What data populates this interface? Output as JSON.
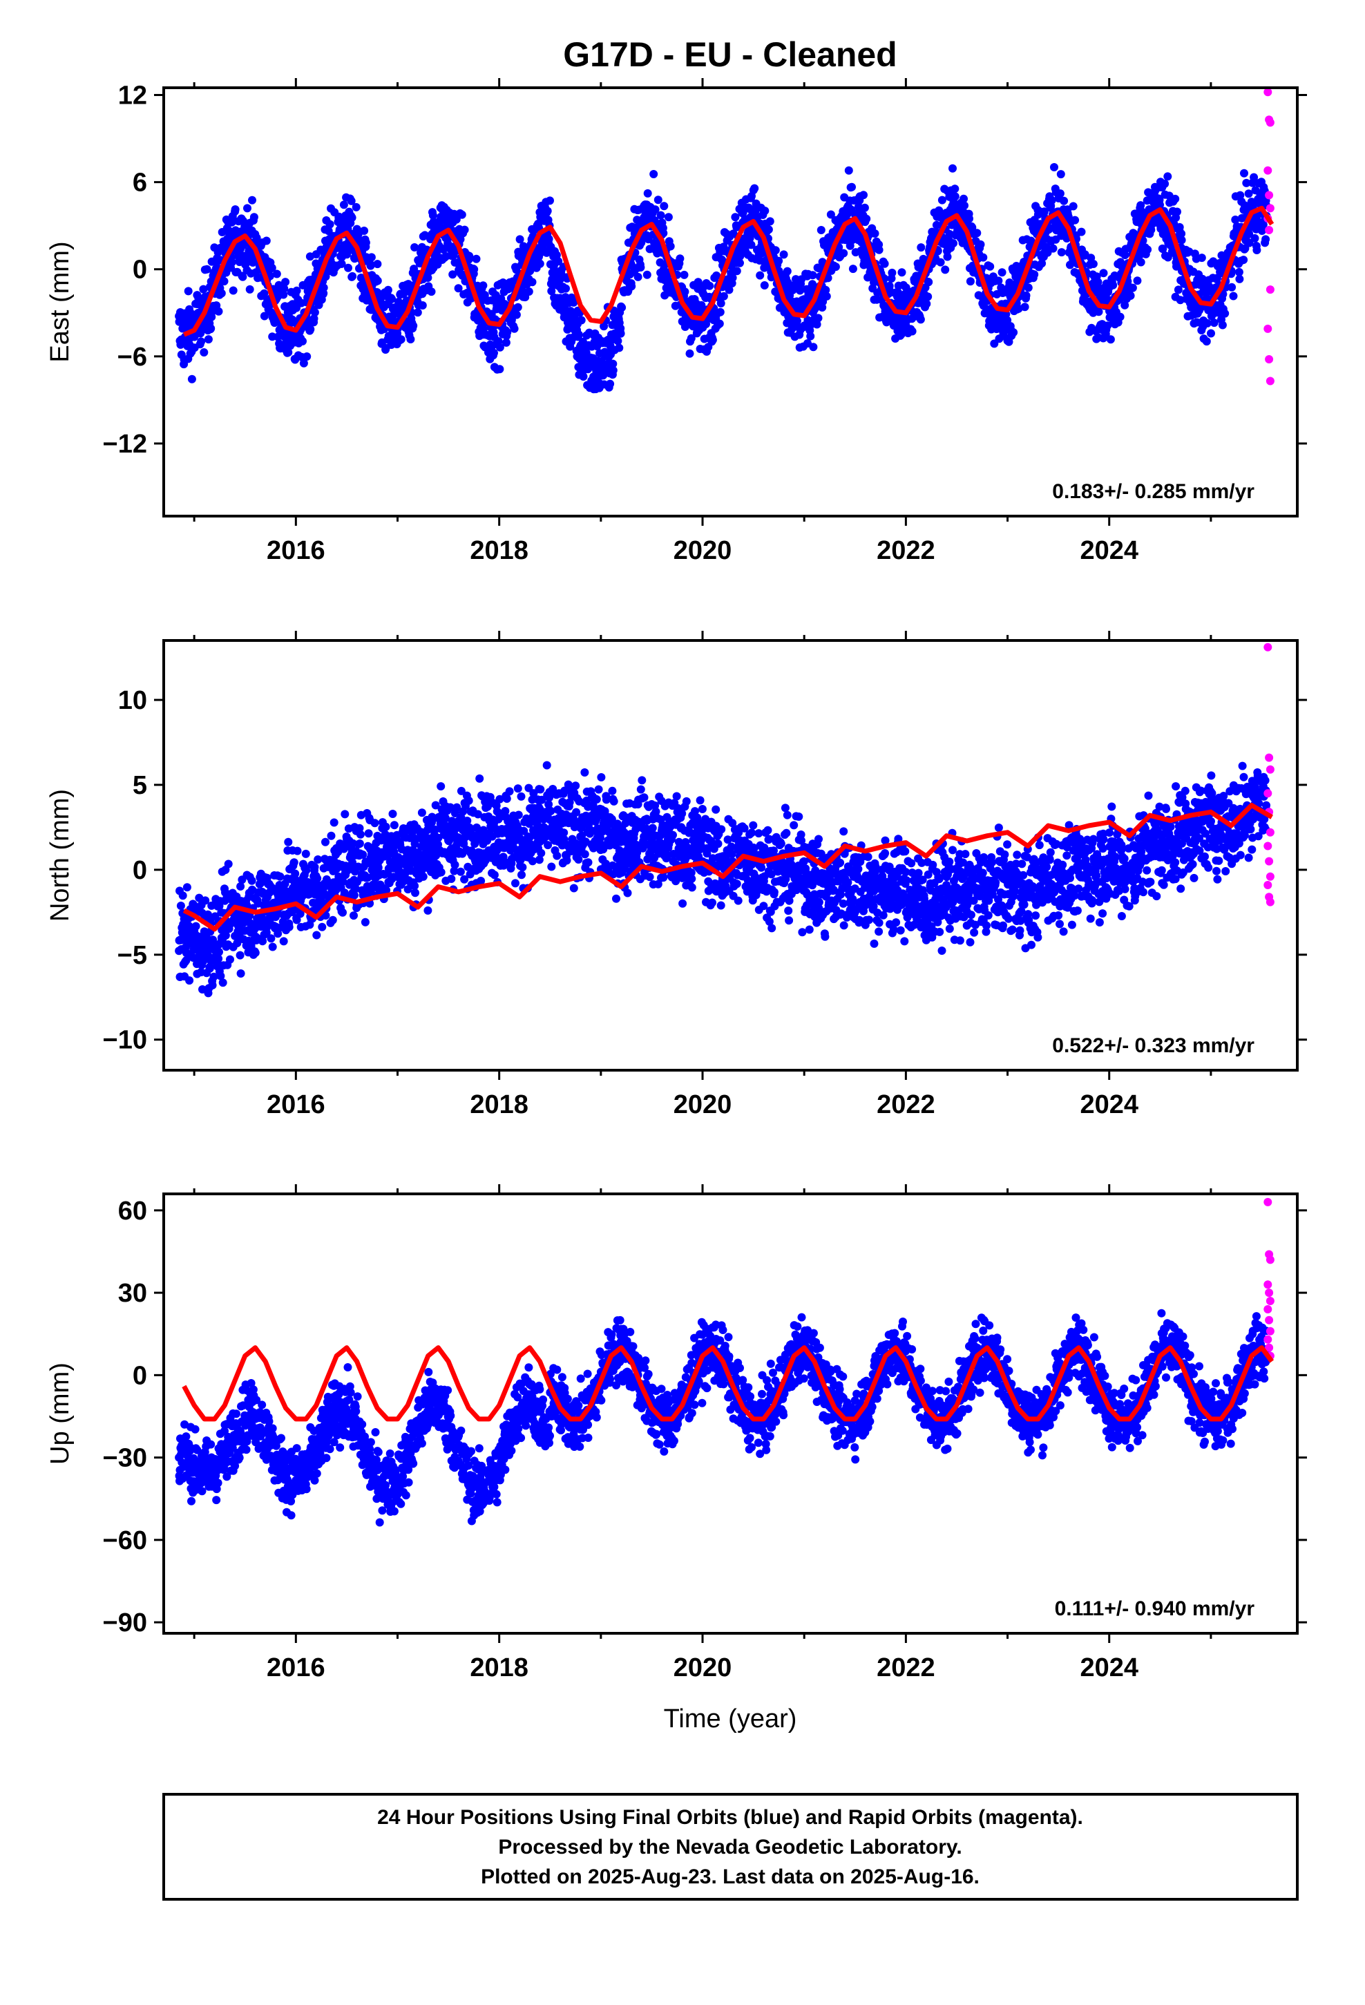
{
  "figure_title": "G17D  - EU - Cleaned",
  "xlabel": "Time (year)",
  "footer": [
    "24 Hour Positions Using Final Orbits (blue) and Rapid Orbits (magenta).",
    "Processed by the Nevada Geodetic Laboratory.",
    "Plotted on 2025-Aug-23. Last data on 2025-Aug-16."
  ],
  "colors": {
    "final": "#0000ff",
    "rapid": "#ff00ff",
    "model": "#ff0000",
    "frame": "#000000"
  },
  "chart_data": [
    {
      "type": "scatter",
      "name": "East",
      "ylabel": "East (mm)",
      "xlim": [
        2014.7,
        2025.85
      ],
      "ylim": [
        -17,
        12.5
      ],
      "xticks": [
        2016,
        2018,
        2020,
        2022,
        2024
      ],
      "yticks": [
        12,
        6,
        0,
        -6,
        -12
      ],
      "ytick_labels": [
        "12",
        "6",
        "0",
        "−6",
        "−12"
      ],
      "rate_label": "0.183+/- 0.285 mm/yr",
      "final_orbits_start": 2014.85,
      "final_orbits_end": 2025.55,
      "rapid_orbits_end": 2025.62,
      "model_curve": {
        "t": [
          2014.9,
          2015.0,
          2015.1,
          2015.2,
          2015.3,
          2015.4,
          2015.5,
          2015.6,
          2015.7,
          2015.8,
          2015.9,
          2016.0,
          2016.1,
          2016.2,
          2016.3,
          2016.4,
          2016.5,
          2016.6,
          2016.7,
          2016.8,
          2016.9,
          2017.0,
          2017.1,
          2017.2,
          2017.3,
          2017.4,
          2017.5,
          2017.6,
          2017.7,
          2017.8,
          2017.9,
          2018.0,
          2018.1,
          2018.2,
          2018.3,
          2018.4,
          2018.5,
          2018.6,
          2018.7,
          2018.8,
          2018.9,
          2019.0,
          2019.1,
          2019.2,
          2019.3,
          2019.4,
          2019.5,
          2019.6,
          2019.7,
          2019.8,
          2019.9,
          2020.0,
          2020.1,
          2020.2,
          2020.3,
          2020.4,
          2020.5,
          2020.6,
          2020.7,
          2020.8,
          2020.9,
          2021.0,
          2021.1,
          2021.2,
          2021.3,
          2021.4,
          2021.5,
          2021.6,
          2021.7,
          2021.8,
          2021.9,
          2022.0,
          2022.1,
          2022.2,
          2022.3,
          2022.4,
          2022.5,
          2022.6,
          2022.7,
          2022.8,
          2022.9,
          2023.0,
          2023.1,
          2023.2,
          2023.3,
          2023.4,
          2023.5,
          2023.6,
          2023.7,
          2023.8,
          2023.9,
          2024.0,
          2024.1,
          2024.2,
          2024.3,
          2024.4,
          2024.5,
          2024.6,
          2024.7,
          2024.8,
          2024.9,
          2025.0,
          2025.1,
          2025.2,
          2025.3,
          2025.4,
          2025.5,
          2025.6
        ],
        "y": [
          -4.5,
          -4.2,
          -3.0,
          -1.2,
          0.6,
          1.9,
          2.3,
          1.4,
          -0.5,
          -2.6,
          -4.0,
          -4.2,
          -3.1,
          -1.2,
          0.7,
          2.1,
          2.5,
          1.5,
          -0.6,
          -2.7,
          -3.9,
          -4.0,
          -2.9,
          -1.0,
          0.9,
          2.3,
          2.7,
          1.6,
          -0.5,
          -2.6,
          -3.7,
          -3.8,
          -2.7,
          -0.8,
          1.1,
          2.5,
          2.9,
          1.8,
          -0.4,
          -2.5,
          -3.5,
          -3.6,
          -2.5,
          -0.6,
          1.3,
          2.7,
          3.1,
          2.0,
          -0.2,
          -2.3,
          -3.3,
          -3.4,
          -2.3,
          -0.4,
          1.5,
          2.9,
          3.3,
          2.2,
          0.0,
          -2.1,
          -3.1,
          -3.2,
          -2.1,
          -0.2,
          1.7,
          3.1,
          3.5,
          2.4,
          0.2,
          -1.9,
          -2.9,
          -3.0,
          -1.9,
          0.0,
          1.9,
          3.3,
          3.7,
          2.6,
          0.4,
          -1.7,
          -2.7,
          -2.8,
          -1.7,
          0.2,
          2.1,
          3.5,
          3.9,
          2.8,
          0.6,
          -1.5,
          -2.5,
          -2.6,
          -1.5,
          0.4,
          2.3,
          3.7,
          4.1,
          3.0,
          0.8,
          -1.3,
          -2.3,
          -2.4,
          -1.3,
          0.6,
          2.5,
          3.9,
          4.2,
          3.1
        ]
      },
      "rapid_points_y": [
        12.2,
        10.3,
        10.1,
        6.8,
        5.1,
        4.2,
        3.5,
        2.7,
        -1.4,
        -4.1,
        -6.2,
        -7.7
      ]
    },
    {
      "type": "scatter",
      "name": "North",
      "ylabel": "North (mm)",
      "xlim": [
        2014.7,
        2025.85
      ],
      "ylim": [
        -11.8,
        13.5
      ],
      "xticks": [
        2016,
        2018,
        2020,
        2022,
        2024
      ],
      "yticks": [
        10,
        5,
        0,
        -5,
        -10
      ],
      "ytick_labels": [
        "10",
        "5",
        "0",
        "−5",
        "−10"
      ],
      "rate_label": "0.522+/- 0.323 mm/yr",
      "final_orbits_start": 2014.85,
      "final_orbits_end": 2025.55,
      "rapid_orbits_end": 2025.62,
      "model_curve": {
        "t": [
          2014.9,
          2015.0,
          2015.2,
          2015.4,
          2015.6,
          2015.8,
          2016.0,
          2016.2,
          2016.4,
          2016.6,
          2016.8,
          2017.0,
          2017.2,
          2017.4,
          2017.6,
          2017.8,
          2018.0,
          2018.2,
          2018.4,
          2018.6,
          2018.8,
          2019.0,
          2019.2,
          2019.4,
          2019.6,
          2019.8,
          2020.0,
          2020.2,
          2020.4,
          2020.6,
          2020.8,
          2021.0,
          2021.2,
          2021.4,
          2021.6,
          2021.8,
          2022.0,
          2022.2,
          2022.4,
          2022.6,
          2022.8,
          2023.0,
          2023.2,
          2023.4,
          2023.6,
          2023.8,
          2024.0,
          2024.2,
          2024.4,
          2024.6,
          2024.8,
          2025.0,
          2025.2,
          2025.4,
          2025.6
        ],
        "y": [
          -2.4,
          -2.7,
          -3.5,
          -2.2,
          -2.5,
          -2.3,
          -2.0,
          -2.8,
          -1.6,
          -1.9,
          -1.6,
          -1.4,
          -2.2,
          -1.0,
          -1.3,
          -1.0,
          -0.8,
          -1.6,
          -0.4,
          -0.7,
          -0.4,
          -0.2,
          -1.0,
          0.2,
          -0.1,
          0.2,
          0.4,
          -0.4,
          0.8,
          0.5,
          0.8,
          1.0,
          0.2,
          1.4,
          1.1,
          1.4,
          1.6,
          0.8,
          2.0,
          1.7,
          2.0,
          2.2,
          1.4,
          2.6,
          2.3,
          2.6,
          2.8,
          2.0,
          3.2,
          2.9,
          3.2,
          3.4,
          2.6,
          3.8,
          3.1
        ]
      },
      "rapid_points_y": [
        13.1,
        6.6,
        5.9,
        4.5,
        3.4,
        2.2,
        1.4,
        0.5,
        -0.4,
        -0.9,
        -1.6,
        -1.9
      ]
    },
    {
      "type": "scatter",
      "name": "Up",
      "ylabel": "Up (mm)",
      "xlim": [
        2014.7,
        2025.85
      ],
      "ylim": [
        -94,
        66
      ],
      "xticks": [
        2016,
        2018,
        2020,
        2022,
        2024
      ],
      "yticks": [
        60,
        30,
        0,
        -30,
        -60,
        -90
      ],
      "ytick_labels": [
        "60",
        "30",
        "0",
        "−30",
        "−60",
        "−90"
      ],
      "rate_label": "0.111+/- 0.940 mm/yr",
      "final_orbits_start": 2014.85,
      "final_orbits_end": 2025.55,
      "rapid_orbits_end": 2025.62,
      "offset_epoch": 2018.5,
      "model_curve": {
        "t": [
          2014.9,
          2015.0,
          2015.1,
          2015.2,
          2015.3,
          2015.4,
          2015.5,
          2015.6,
          2015.7,
          2015.8,
          2015.9,
          2016.0,
          2016.1,
          2016.2,
          2016.3,
          2016.4,
          2016.5,
          2016.6,
          2016.7,
          2016.8,
          2016.9,
          2017.0,
          2017.1,
          2017.2,
          2017.3,
          2017.4,
          2017.5,
          2017.6,
          2017.7,
          2017.8,
          2017.9,
          2018.0,
          2018.1,
          2018.2,
          2018.3,
          2018.4,
          2018.5,
          2018.6,
          2018.7,
          2018.8,
          2018.9,
          2019.0,
          2019.1,
          2019.2,
          2019.3,
          2019.4,
          2019.5,
          2019.6,
          2019.7,
          2019.8,
          2019.9,
          2020.0,
          2020.1,
          2020.2,
          2020.3,
          2020.4,
          2020.5,
          2020.6,
          2020.7,
          2020.8,
          2020.9,
          2021.0,
          2021.1,
          2021.2,
          2021.3,
          2021.4,
          2021.5,
          2021.6,
          2021.7,
          2021.8,
          2021.9,
          2022.0,
          2022.1,
          2022.2,
          2022.3,
          2022.4,
          2022.5,
          2022.6,
          2022.7,
          2022.8,
          2022.9,
          2023.0,
          2023.1,
          2023.2,
          2023.3,
          2023.4,
          2023.5,
          2023.6,
          2023.7,
          2023.8,
          2023.9,
          2024.0,
          2024.1,
          2024.2,
          2024.3,
          2024.4,
          2024.5,
          2024.6,
          2024.7,
          2024.8,
          2024.9,
          2025.0,
          2025.1,
          2025.2,
          2025.3,
          2025.4,
          2025.5,
          2025.6
        ],
        "y": [
          -4,
          -11,
          -16,
          -16,
          -11,
          -2,
          7,
          10,
          5,
          -4,
          -12,
          -16,
          -16,
          -11,
          -2,
          7,
          10,
          5,
          -4,
          -12,
          -16,
          -16,
          -11,
          -2,
          7,
          10,
          5,
          -4,
          -12,
          -16,
          -16,
          -11,
          -2,
          7,
          10,
          5,
          -4,
          -12,
          -16,
          -16,
          -11,
          -2,
          7,
          10,
          5,
          -4,
          -12,
          -16,
          -16,
          -11,
          -2,
          7,
          10,
          5,
          -4,
          -12,
          -16,
          -16,
          -11,
          -2,
          7,
          10,
          5,
          -4,
          -12,
          -16,
          -16,
          -11,
          -2,
          7,
          10,
          5,
          -4,
          -12,
          -16,
          -16,
          -11,
          -2,
          7,
          10,
          5,
          -4,
          -12,
          -16,
          -16,
          -11,
          -2,
          7,
          10,
          5,
          -4,
          -12,
          -16,
          -16,
          -11,
          -2,
          7,
          10,
          5,
          -4,
          -12,
          -16,
          -16,
          -11,
          -2,
          7,
          10,
          5
        ]
      },
      "rapid_points_y": [
        63,
        44,
        42,
        33,
        30,
        27,
        24,
        20,
        16,
        13,
        10,
        7
      ]
    }
  ]
}
